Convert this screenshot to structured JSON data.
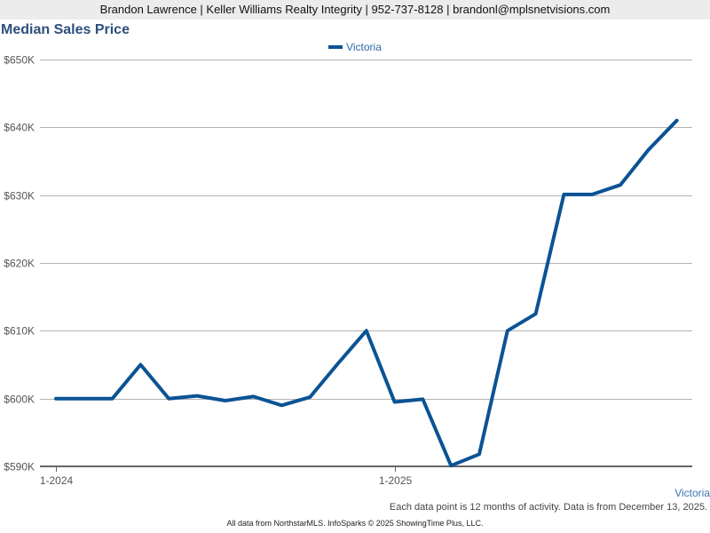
{
  "header": {
    "contact_line": "Brandon Lawrence | Keller Williams Realty Integrity | 952-737-8128 | brandonl@mplsnetvisions.com"
  },
  "chart": {
    "title": "Median Sales Price",
    "series_label": "Victoria",
    "note": "Each data point is 12 months of activity. Data is from December 13, 2025.",
    "footer": "All data from NorthstarMLS. InfoSparks © 2025 ShowingTime Plus, LLC.",
    "colors": {
      "line": "#0b5394",
      "grid": "#b3b3b3",
      "axis": "#666666",
      "title": "#2d4f7c"
    }
  },
  "chart_data": {
    "type": "line",
    "title": "Median Sales Price",
    "xlabel": "",
    "ylabel": "",
    "ylim": [
      590000,
      650000
    ],
    "yticks": [
      590000,
      600000,
      610000,
      620000,
      630000,
      640000,
      650000
    ],
    "ytick_labels": [
      "$590K",
      "$600K",
      "$610K",
      "$620K",
      "$630K",
      "$640K",
      "$650K"
    ],
    "xtick_labels": [
      {
        "label": "1-2024",
        "index": 0
      },
      {
        "label": "1-2025",
        "index": 12
      }
    ],
    "grid": true,
    "legend_position": "top-center",
    "x": [
      "1-2024",
      "2-2024",
      "3-2024",
      "4-2024",
      "5-2024",
      "6-2024",
      "7-2024",
      "8-2024",
      "9-2024",
      "10-2024",
      "11-2024",
      "12-2024",
      "1-2025",
      "2-2025",
      "3-2025",
      "4-2025",
      "5-2025",
      "6-2025",
      "7-2025",
      "8-2025",
      "9-2025",
      "10-2025",
      "11-2025"
    ],
    "series": [
      {
        "name": "Victoria",
        "values": [
          600000,
          600000,
          600000,
          605000,
          600000,
          600400,
          599700,
          600300,
          599000,
          600200,
          605200,
          610000,
          599500,
          599900,
          590100,
          591800,
          610000,
          612500,
          630100,
          630100,
          631500,
          636700,
          641000
        ]
      }
    ]
  }
}
